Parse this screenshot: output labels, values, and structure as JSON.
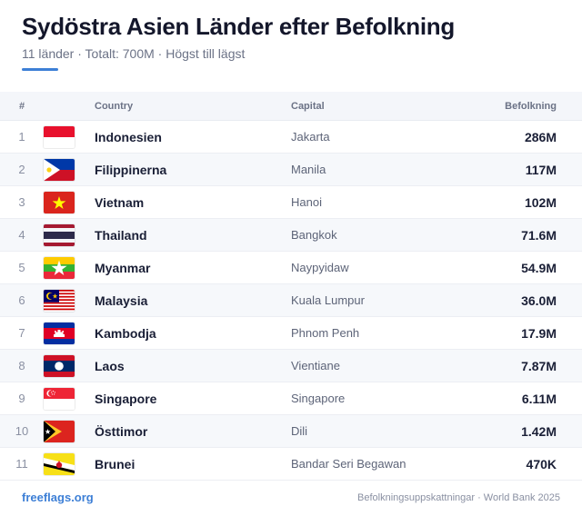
{
  "header": {
    "title": "Sydöstra Asien Länder efter Befolkning",
    "subtitle": "11 länder · Totalt: 700M · Högst till lägst"
  },
  "table": {
    "columns": {
      "num": "#",
      "country": "Country",
      "capital": "Capital",
      "population": "Befolkning"
    },
    "rows": [
      {
        "num": "1",
        "flag": "indonesia-flag-icon",
        "country": "Indonesien",
        "capital": "Jakarta",
        "population": "286M"
      },
      {
        "num": "2",
        "flag": "philippines-flag-icon",
        "country": "Filippinerna",
        "capital": "Manila",
        "population": "117M"
      },
      {
        "num": "3",
        "flag": "vietnam-flag-icon",
        "country": "Vietnam",
        "capital": "Hanoi",
        "population": "102M"
      },
      {
        "num": "4",
        "flag": "thailand-flag-icon",
        "country": "Thailand",
        "capital": "Bangkok",
        "population": "71.6M"
      },
      {
        "num": "5",
        "flag": "myanmar-flag-icon",
        "country": "Myanmar",
        "capital": "Naypyidaw",
        "population": "54.9M"
      },
      {
        "num": "6",
        "flag": "malaysia-flag-icon",
        "country": "Malaysia",
        "capital": "Kuala Lumpur",
        "population": "36.0M"
      },
      {
        "num": "7",
        "flag": "cambodia-flag-icon",
        "country": "Kambodja",
        "capital": "Phnom Penh",
        "population": "17.9M"
      },
      {
        "num": "8",
        "flag": "laos-flag-icon",
        "country": "Laos",
        "capital": "Vientiane",
        "population": "7.87M"
      },
      {
        "num": "9",
        "flag": "singapore-flag-icon",
        "country": "Singapore",
        "capital": "Singapore",
        "population": "6.11M"
      },
      {
        "num": "10",
        "flag": "timor-leste-flag-icon",
        "country": "Östtimor",
        "capital": "Dili",
        "population": "1.42M"
      },
      {
        "num": "11",
        "flag": "brunei-flag-icon",
        "country": "Brunei",
        "capital": "Bandar Seri Begawan",
        "population": "470K"
      }
    ]
  },
  "footer": {
    "brand": "freeflags.org",
    "source": "Befolkningsuppskattningar · World Bank 2025"
  },
  "colors": {
    "accent": "#3d7fd6",
    "title": "#14172b",
    "header_bg": "#f4f6fa",
    "alt_row_bg": "#f6f8fb"
  }
}
